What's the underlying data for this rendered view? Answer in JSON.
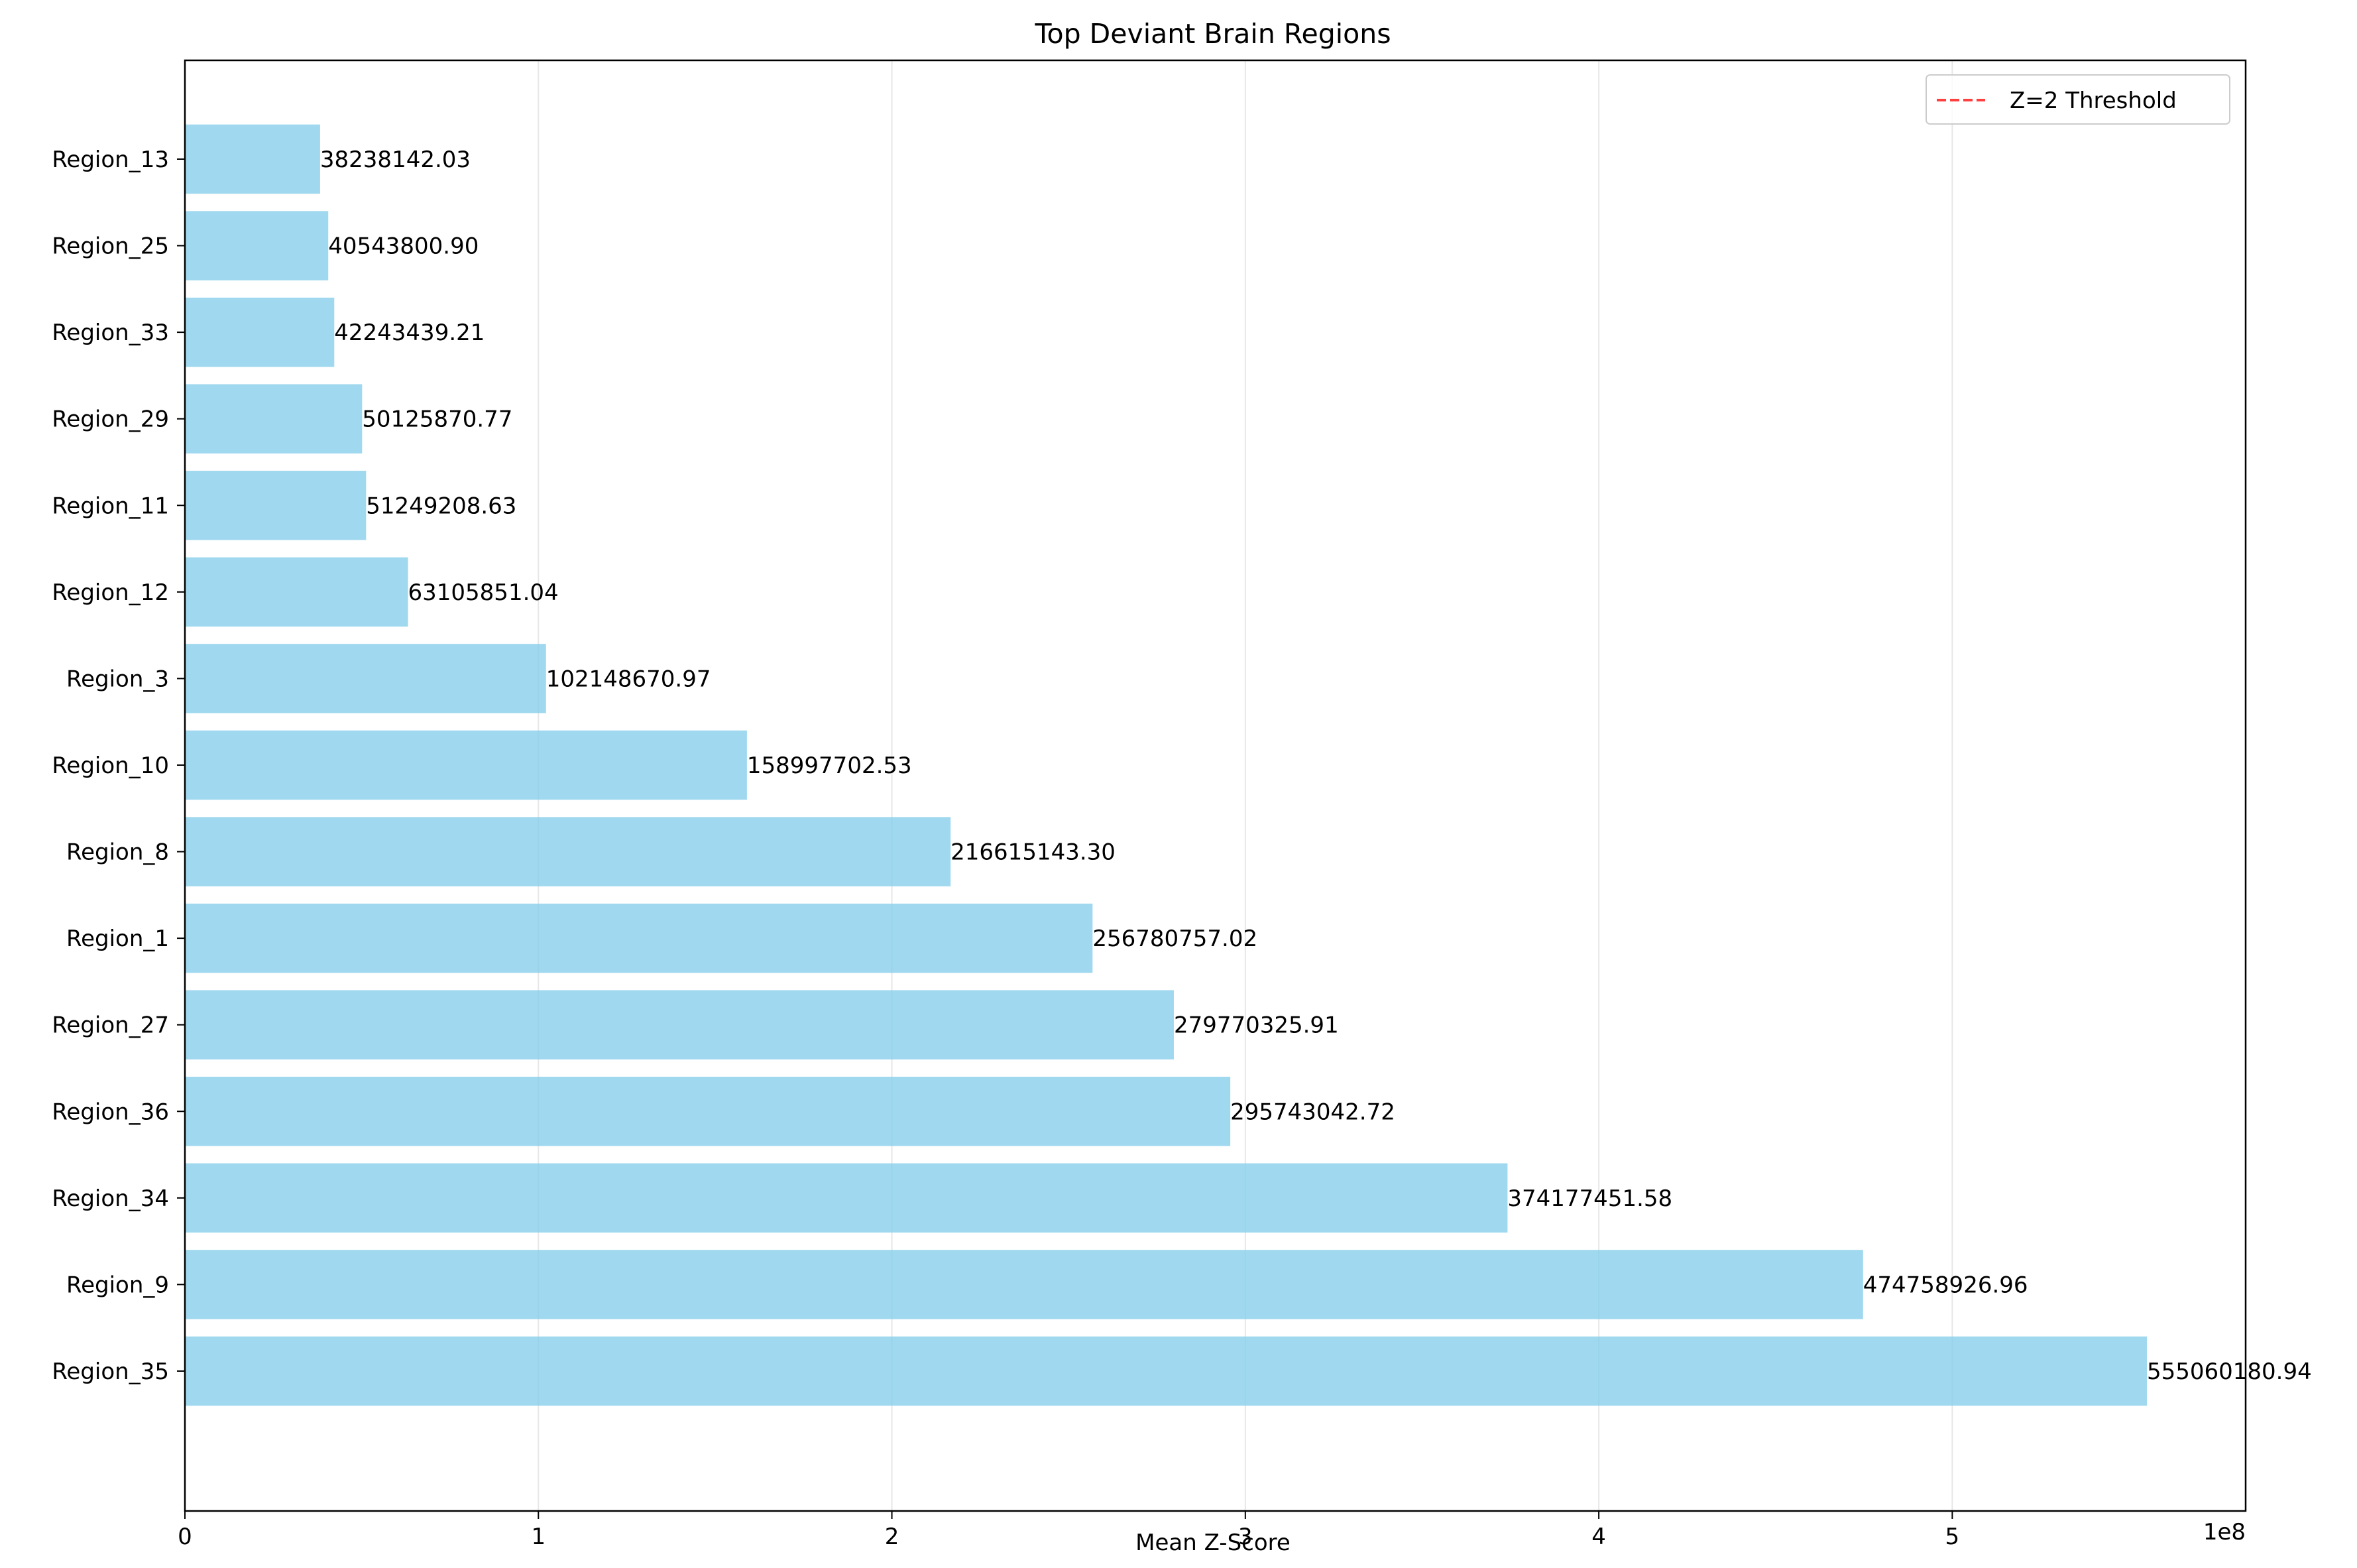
{
  "chart_data": {
    "type": "bar",
    "orientation": "horizontal",
    "title": "Top Deviant Brain Regions",
    "xlabel": "Mean Z-Score",
    "ylabel": "",
    "x_offset_label": "1e8",
    "x_scale": 100000000,
    "xlim": [
      0,
      583000000
    ],
    "x_ticks": [
      0,
      100000000,
      200000000,
      300000000,
      400000000,
      500000000
    ],
    "x_tick_labels": [
      "0",
      "1",
      "2",
      "3",
      "4",
      "5"
    ],
    "grid": "x",
    "bar_color": "#87ceeb",
    "categories": [
      "Region_13",
      "Region_25",
      "Region_33",
      "Region_29",
      "Region_11",
      "Region_12",
      "Region_3",
      "Region_10",
      "Region_8",
      "Region_1",
      "Region_27",
      "Region_36",
      "Region_34",
      "Region_9",
      "Region_35"
    ],
    "values": [
      38238142.03,
      40543800.9,
      42243439.21,
      50125870.77,
      51249208.63,
      63105851.04,
      102148670.97,
      158997702.53,
      216615143.3,
      256780757.02,
      279770325.91,
      295743042.72,
      374177451.58,
      474758926.96,
      555060180.94
    ],
    "value_labels": [
      "38238142.03",
      "40543800.90",
      "42243439.21",
      "50125870.77",
      "51249208.63",
      "63105851.04",
      "102148670.97",
      "158997702.53",
      "216615143.30",
      "256780757.02",
      "279770325.91",
      "295743042.72",
      "374177451.58",
      "474758926.96",
      "555060180.94"
    ],
    "legend": {
      "position": "top-right",
      "entries": [
        {
          "label": "Z=2 Threshold",
          "color": "#ff0000",
          "style": "dashed"
        }
      ]
    }
  }
}
